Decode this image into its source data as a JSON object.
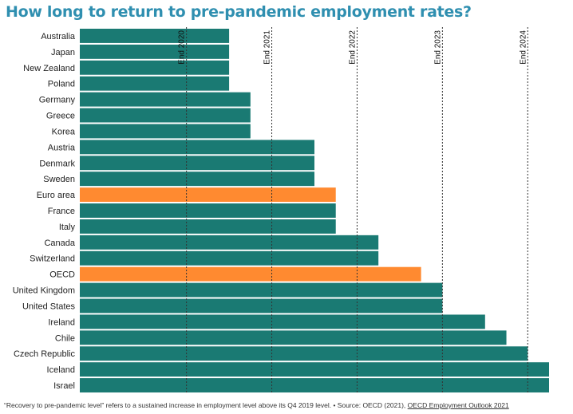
{
  "title": "How long to return to pre-pandemic employment rates?",
  "footnote": {
    "text": "“Recovery to pre-pandemic level” refers to a sustained increase in employment level above its Q4 2019 level. • Source: OECD (2021), ",
    "link_text": "OECD Employment Outlook 2021"
  },
  "colors": {
    "bar": "#1a7a73",
    "highlight": "#ff8a30",
    "title": "#2f8fb0",
    "grid": "#333333"
  },
  "chart_data": {
    "type": "bar",
    "orientation": "horizontal",
    "title": "How long to return to pre-pandemic employment rates?",
    "x_unit": "quarters",
    "xlim": [
      2019.75,
      2025.0
    ],
    "reference_lines": [
      {
        "label": "End 2020",
        "value": 2021.0
      },
      {
        "label": "End 2021",
        "value": 2022.0
      },
      {
        "label": "End 2022",
        "value": 2023.0
      },
      {
        "label": "End 2023",
        "value": 2024.0
      },
      {
        "label": "End 2024",
        "value": 2025.0
      }
    ],
    "highlighted": [
      "Euro area",
      "OECD"
    ],
    "categories": [
      "Australia",
      "Japan",
      "New Zealand",
      "Poland",
      "Germany",
      "Greece",
      "Korea",
      "Austria",
      "Denmark",
      "Sweden",
      "Euro area",
      "France",
      "Italy",
      "Canada",
      "Switzerland",
      "OECD",
      "United Kingdom",
      "United States",
      "Ireland",
      "Chile",
      "Czech Republic",
      "Iceland",
      "Israel"
    ],
    "values": [
      2021.5,
      2021.5,
      2021.5,
      2021.5,
      2021.75,
      2021.75,
      2021.75,
      2022.5,
      2022.5,
      2022.5,
      2022.75,
      2022.75,
      2022.75,
      2023.25,
      2023.25,
      2023.75,
      2024.0,
      2024.0,
      2024.5,
      2024.75,
      2025.0,
      2025.25,
      2025.25
    ],
    "grid": false,
    "legend": "none"
  }
}
